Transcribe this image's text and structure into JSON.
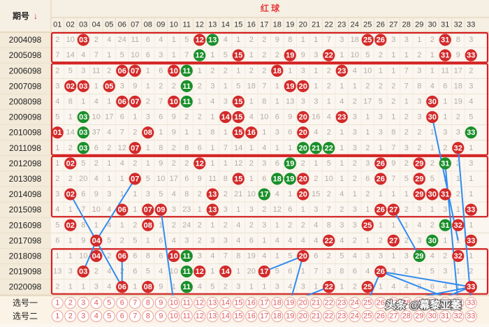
{
  "header": {
    "period_label": "期号",
    "sort_arrow": "↓",
    "red_label": "红 球",
    "columns": [
      "01",
      "02",
      "03",
      "04",
      "05",
      "06",
      "07",
      "08",
      "09",
      "10",
      "11",
      "12",
      "13",
      "14",
      "15",
      "16",
      "17",
      "18",
      "19",
      "20",
      "21",
      "22",
      "23",
      "24",
      "25",
      "26",
      "27",
      "28",
      "29",
      "30",
      "31",
      "32",
      "33"
    ]
  },
  "colors": {
    "red_ball": "#d32a2a",
    "green_ball": "#1a8f2a",
    "trend_line": "#2e8bf0",
    "box_border": "#d42020",
    "header_text": "#e63b3b"
  },
  "rows": [
    {
      "period": "2004098",
      "cells": [
        "2",
        "10",
        "03",
        "2",
        "4",
        "24",
        "11",
        "6",
        "4",
        "1",
        "5",
        "12",
        "13",
        "4",
        "1",
        "2",
        "2",
        "9",
        "8",
        "1",
        "1",
        "7",
        "3",
        "18",
        "25",
        "26",
        "3",
        "3",
        "1",
        "2",
        "31",
        "8",
        "3"
      ]
    },
    {
      "period": "2005098",
      "cells": [
        "7",
        "14",
        "4",
        "7",
        "1",
        "5",
        "10",
        "6",
        "3",
        "1",
        "7",
        "12",
        "1",
        "5",
        "15",
        "1",
        "2",
        "2",
        "19",
        "9",
        "3",
        "22",
        "1",
        "10",
        "5",
        "2",
        "1",
        "1",
        "2",
        "1",
        "31",
        "9",
        "33"
      ]
    },
    {
      "period": "2006098",
      "cells": [
        "2",
        "5",
        "3",
        "11",
        "2",
        "06",
        "07",
        "1",
        "6",
        "10",
        "11",
        "1",
        "2",
        "2",
        "1",
        "2",
        "2",
        "18",
        "1",
        "3",
        "1",
        "2",
        "23",
        "4",
        "10",
        "1",
        "1",
        "7",
        "3",
        "1",
        "11",
        "17",
        "2"
      ]
    },
    {
      "period": "2007098",
      "cells": [
        "3",
        "02",
        "03",
        "1",
        "05",
        "3",
        "9",
        "1",
        "2",
        "2",
        "11",
        "2",
        "3",
        "1",
        "5",
        "18",
        "7",
        "1",
        "19",
        "20",
        "1",
        "2",
        "1",
        "1",
        "2",
        "2",
        "2",
        "7",
        "8",
        "4",
        "6",
        "18",
        "3"
      ]
    },
    {
      "period": "2008098",
      "cells": [
        "4",
        "8",
        "1",
        "4",
        "1",
        "06",
        "07",
        "2",
        "7",
        "10",
        "11",
        "1",
        "4",
        "3",
        "15",
        "1",
        "8",
        "1",
        "13",
        "3",
        "3",
        "1",
        "4",
        "2",
        "17",
        "5",
        "2",
        "1",
        "3",
        "30",
        "1",
        "19",
        "4"
      ]
    },
    {
      "period": "2009098",
      "cells": [
        "5",
        "1",
        "03",
        "10",
        "17",
        "6",
        "1",
        "3",
        "6",
        "9",
        "2",
        "2",
        "1",
        "14",
        "15",
        "4",
        "10",
        "6",
        "9",
        "20",
        "16",
        "4",
        "23",
        "3",
        "1",
        "3",
        "1",
        "2",
        "3",
        "30",
        "1",
        "2",
        "5"
      ]
    },
    {
      "period": "2010098",
      "cells": [
        "01",
        "14",
        "03",
        "37",
        "4",
        "7",
        "2",
        "08",
        "1",
        "9",
        "1",
        "1",
        "8",
        "1",
        "15",
        "16",
        "1",
        "3",
        "6",
        "20",
        "4",
        "2",
        "1",
        "3",
        "1",
        "3",
        "8",
        "2",
        "2",
        "1",
        "3",
        "3",
        "33"
      ]
    },
    {
      "period": "2011098",
      "cells": [
        "1",
        "2",
        "03",
        "6",
        "2",
        "12",
        "07",
        "1",
        "8",
        "2",
        "8",
        "6",
        "1",
        "7",
        "14",
        "1",
        "4",
        "1",
        "1",
        "20",
        "21",
        "22",
        "1",
        "3",
        "2",
        "1",
        "7",
        "3",
        "2",
        "1",
        "2",
        "32",
        "1"
      ]
    },
    {
      "period": "2012098",
      "cells": [
        "1",
        "02",
        "5",
        "2",
        "1",
        "4",
        "2",
        "1",
        "9",
        "2",
        "2",
        "12",
        "1",
        "1",
        "12",
        "2",
        "3",
        "6",
        "19",
        "2",
        "1",
        "5",
        "1",
        "2",
        "3",
        "26",
        "9",
        "2",
        "29",
        "2",
        "31",
        "2",
        "3"
      ]
    },
    {
      "period": "2013098",
      "cells": [
        "2",
        "2",
        "20",
        "4",
        "1",
        "1",
        "07",
        "5",
        "10",
        "17",
        "6",
        "9",
        "11",
        "8",
        "15",
        "1",
        "6",
        "18",
        "19",
        "20",
        "2",
        "10",
        "1",
        "2",
        "6",
        "26",
        "7",
        "5",
        "29",
        "5",
        "1",
        "1",
        "1"
      ]
    },
    {
      "period": "2014098",
      "cells": [
        "3",
        "02",
        "6",
        "9",
        "3",
        "1",
        "1",
        "3",
        "5",
        "4",
        "8",
        "2",
        "13",
        "2",
        "21",
        "10",
        "17",
        "4",
        "1",
        "20",
        "15",
        "2",
        "4",
        "1",
        "2",
        "1",
        "1",
        "1",
        "29",
        "30",
        "31",
        "2",
        "1"
      ]
    },
    {
      "period": "2015098",
      "cells": [
        "4",
        "1",
        "7",
        "10",
        "4",
        "06",
        "1",
        "07",
        "09",
        "3",
        "23",
        "1",
        "13",
        "3",
        "1",
        "3",
        "2",
        "12",
        "6",
        "1",
        "3",
        "7",
        "2",
        "3",
        "1",
        "26",
        "27",
        "2",
        "3",
        "1",
        "3",
        "1",
        "33"
      ]
    },
    {
      "period": "2016098",
      "cells": [
        "5",
        "02",
        "8",
        "1",
        "4",
        "1",
        "2",
        "08",
        "1",
        "2",
        "24",
        "2",
        "1",
        "2",
        "4",
        "2",
        "3",
        "1",
        "2",
        "2",
        "4",
        "8",
        "3",
        "3",
        "25",
        "1",
        "1",
        "1",
        "4",
        "2",
        "31",
        "32",
        "1"
      ]
    },
    {
      "period": "2017098",
      "cells": [
        "6",
        "1",
        "9",
        "04",
        "5",
        "2",
        "5",
        "1",
        "6",
        "4",
        "3",
        "2",
        "3",
        "3",
        "4",
        "6",
        "1",
        "4",
        "4",
        "4",
        "4",
        "22",
        "4",
        "2",
        "1",
        "2",
        "27",
        "2",
        "3",
        "30",
        "1",
        "1",
        "33"
      ]
    },
    {
      "period": "2018098",
      "cells": [
        "1",
        "1",
        "10",
        "04",
        "2",
        "06",
        "6",
        "8",
        "6",
        "10",
        "11",
        "3",
        "4",
        "7",
        "8",
        "19",
        "4",
        "1",
        "5",
        "20",
        "6",
        "2",
        "5",
        "4",
        "3",
        "3",
        "1",
        "3",
        "29",
        "4",
        "2",
        "32",
        "1"
      ]
    },
    {
      "period": "2019098",
      "cells": [
        "13",
        "3",
        "03",
        "2",
        "4",
        "2",
        "6",
        "5",
        "4",
        "10",
        "11",
        "12",
        "1",
        "14",
        "1",
        "20",
        "17",
        "5",
        "6",
        "1",
        "7",
        "3",
        "8",
        "6",
        "4",
        "26",
        "3",
        "2",
        "1",
        "5",
        "3",
        "1",
        "2"
      ]
    },
    {
      "period": "2020098",
      "cells": [
        "2",
        "1",
        "1",
        "3",
        "4",
        "06",
        "1",
        "08",
        "9",
        "1",
        "11",
        "4",
        "5",
        "2",
        "3",
        "1",
        "1",
        "3",
        "4",
        "3",
        "1",
        "22",
        "1",
        "2",
        "25",
        "1",
        "4",
        "4",
        "2",
        "6",
        "4",
        "1",
        "33"
      ]
    }
  ],
  "balls": [
    {
      "row": 0,
      "col": 2,
      "green": false
    },
    {
      "row": 0,
      "col": 11,
      "green": false
    },
    {
      "row": 0,
      "col": 12,
      "green": true
    },
    {
      "row": 0,
      "col": 24,
      "green": false
    },
    {
      "row": 0,
      "col": 25,
      "green": false
    },
    {
      "row": 0,
      "col": 30,
      "green": false
    },
    {
      "row": 1,
      "col": 11,
      "green": true
    },
    {
      "row": 1,
      "col": 14,
      "green": false
    },
    {
      "row": 1,
      "col": 18,
      "green": false
    },
    {
      "row": 1,
      "col": 21,
      "green": false
    },
    {
      "row": 1,
      "col": 30,
      "green": false
    },
    {
      "row": 1,
      "col": 32,
      "green": false
    },
    {
      "row": 2,
      "col": 5,
      "green": false
    },
    {
      "row": 2,
      "col": 6,
      "green": false
    },
    {
      "row": 2,
      "col": 9,
      "green": false
    },
    {
      "row": 2,
      "col": 10,
      "green": true
    },
    {
      "row": 2,
      "col": 17,
      "green": false
    },
    {
      "row": 2,
      "col": 22,
      "green": false
    },
    {
      "row": 3,
      "col": 1,
      "green": false
    },
    {
      "row": 3,
      "col": 2,
      "green": false
    },
    {
      "row": 3,
      "col": 4,
      "green": false
    },
    {
      "row": 3,
      "col": 10,
      "green": true
    },
    {
      "row": 3,
      "col": 18,
      "green": false
    },
    {
      "row": 3,
      "col": 19,
      "green": false
    },
    {
      "row": 4,
      "col": 5,
      "green": false
    },
    {
      "row": 4,
      "col": 6,
      "green": false
    },
    {
      "row": 4,
      "col": 9,
      "green": false
    },
    {
      "row": 4,
      "col": 10,
      "green": true
    },
    {
      "row": 4,
      "col": 14,
      "green": false
    },
    {
      "row": 4,
      "col": 29,
      "green": false
    },
    {
      "row": 5,
      "col": 2,
      "green": true
    },
    {
      "row": 5,
      "col": 13,
      "green": false
    },
    {
      "row": 5,
      "col": 14,
      "green": false
    },
    {
      "row": 5,
      "col": 19,
      "green": false
    },
    {
      "row": 5,
      "col": 22,
      "green": false
    },
    {
      "row": 5,
      "col": 29,
      "green": false
    },
    {
      "row": 6,
      "col": 0,
      "green": false
    },
    {
      "row": 6,
      "col": 2,
      "green": true
    },
    {
      "row": 6,
      "col": 7,
      "green": false
    },
    {
      "row": 6,
      "col": 14,
      "green": false
    },
    {
      "row": 6,
      "col": 15,
      "green": false
    },
    {
      "row": 6,
      "col": 19,
      "green": false
    },
    {
      "row": 6,
      "col": 32,
      "green": true
    },
    {
      "row": 7,
      "col": 2,
      "green": true
    },
    {
      "row": 7,
      "col": 6,
      "green": false
    },
    {
      "row": 7,
      "col": 19,
      "green": true
    },
    {
      "row": 7,
      "col": 20,
      "green": true
    },
    {
      "row": 7,
      "col": 21,
      "green": true
    },
    {
      "row": 7,
      "col": 31,
      "green": false
    },
    {
      "row": 8,
      "col": 1,
      "green": false
    },
    {
      "row": 8,
      "col": 11,
      "green": false
    },
    {
      "row": 8,
      "col": 18,
      "green": true
    },
    {
      "row": 8,
      "col": 25,
      "green": false
    },
    {
      "row": 8,
      "col": 28,
      "green": false
    },
    {
      "row": 8,
      "col": 30,
      "green": true
    },
    {
      "row": 9,
      "col": 6,
      "green": false
    },
    {
      "row": 9,
      "col": 14,
      "green": false
    },
    {
      "row": 9,
      "col": 17,
      "green": true
    },
    {
      "row": 9,
      "col": 18,
      "green": true
    },
    {
      "row": 9,
      "col": 19,
      "green": false
    },
    {
      "row": 9,
      "col": 25,
      "green": false
    },
    {
      "row": 9,
      "col": 28,
      "green": false
    },
    {
      "row": 10,
      "col": 1,
      "green": false
    },
    {
      "row": 10,
      "col": 12,
      "green": false
    },
    {
      "row": 10,
      "col": 16,
      "green": true
    },
    {
      "row": 10,
      "col": 19,
      "green": false
    },
    {
      "row": 10,
      "col": 28,
      "green": false
    },
    {
      "row": 10,
      "col": 29,
      "green": false
    },
    {
      "row": 10,
      "col": 30,
      "green": false
    },
    {
      "row": 11,
      "col": 5,
      "green": false
    },
    {
      "row": 11,
      "col": 7,
      "green": false
    },
    {
      "row": 11,
      "col": 8,
      "green": false
    },
    {
      "row": 11,
      "col": 12,
      "green": false
    },
    {
      "row": 11,
      "col": 25,
      "green": false
    },
    {
      "row": 11,
      "col": 26,
      "green": false
    },
    {
      "row": 11,
      "col": 32,
      "green": false
    },
    {
      "row": 12,
      "col": 1,
      "green": false
    },
    {
      "row": 12,
      "col": 7,
      "green": false
    },
    {
      "row": 12,
      "col": 24,
      "green": false
    },
    {
      "row": 12,
      "col": 30,
      "green": true
    },
    {
      "row": 12,
      "col": 31,
      "green": false
    },
    {
      "row": 13,
      "col": 3,
      "green": false
    },
    {
      "row": 13,
      "col": 21,
      "green": false
    },
    {
      "row": 13,
      "col": 26,
      "green": false
    },
    {
      "row": 13,
      "col": 29,
      "green": true
    },
    {
      "row": 13,
      "col": 32,
      "green": false
    },
    {
      "row": 14,
      "col": 3,
      "green": false
    },
    {
      "row": 14,
      "col": 5,
      "green": false
    },
    {
      "row": 14,
      "col": 9,
      "green": false
    },
    {
      "row": 14,
      "col": 10,
      "green": true
    },
    {
      "row": 14,
      "col": 19,
      "green": false
    },
    {
      "row": 14,
      "col": 28,
      "green": true
    },
    {
      "row": 14,
      "col": 31,
      "green": false
    },
    {
      "row": 15,
      "col": 2,
      "green": false
    },
    {
      "row": 15,
      "col": 10,
      "green": true
    },
    {
      "row": 15,
      "col": 11,
      "green": false
    },
    {
      "row": 15,
      "col": 13,
      "green": false
    },
    {
      "row": 15,
      "col": 16,
      "green": false
    },
    {
      "row": 15,
      "col": 25,
      "green": false
    },
    {
      "row": 16,
      "col": 5,
      "green": false
    },
    {
      "row": 16,
      "col": 7,
      "green": false
    },
    {
      "row": 16,
      "col": 10,
      "green": true
    },
    {
      "row": 16,
      "col": 21,
      "green": false
    },
    {
      "row": 16,
      "col": 24,
      "green": false
    },
    {
      "row": 16,
      "col": 32,
      "green": false
    }
  ],
  "boxes": [
    [
      0,
      1
    ],
    [
      2,
      7
    ],
    [
      8,
      11
    ],
    [
      14,
      16
    ]
  ],
  "lines": [
    [
      [
        10,
        1
      ],
      [
        13,
        3
      ],
      [
        16,
        5
      ]
    ],
    [
      [
        9,
        6
      ],
      [
        13,
        3
      ],
      [
        15,
        2
      ]
    ],
    [
      [
        14,
        5
      ],
      [
        16,
        5
      ]
    ],
    [
      [
        11,
        8
      ],
      [
        17,
        9
      ]
    ],
    [
      [
        15,
        16
      ],
      [
        14,
        19
      ],
      [
        17,
        18
      ],
      [
        16,
        21
      ]
    ],
    [
      [
        15,
        25
      ],
      [
        18,
        24
      ]
    ],
    [
      [
        15,
        25
      ],
      [
        18,
        31
      ]
    ],
    [
      [
        15,
        25
      ],
      [
        16,
        32
      ]
    ],
    [
      [
        11,
        26
      ],
      [
        14,
        28
      ]
    ],
    [
      [
        8,
        30
      ],
      [
        17,
        31
      ]
    ],
    [
      [
        7,
        31
      ],
      [
        18,
        32
      ]
    ],
    [
      [
        5,
        29
      ],
      [
        13,
        31
      ]
    ],
    [
      [
        16,
        32
      ],
      [
        17,
        26
      ]
    ],
    [
      [
        16,
        32
      ],
      [
        18,
        29
      ]
    ]
  ],
  "pick_rows": [
    {
      "label": "选号一",
      "numbers": [
        "1",
        "2",
        "3",
        "4",
        "5",
        "6",
        "7",
        "8",
        "9",
        "10",
        "11",
        "12",
        "13",
        "14",
        "15",
        "16",
        "17",
        "18",
        "19",
        "20",
        "21",
        "22",
        "23",
        "24",
        "25",
        "26",
        "27",
        "28",
        "29",
        "30",
        "31",
        "32",
        "33"
      ]
    },
    {
      "label": "选号二",
      "numbers": [
        "1",
        "2",
        "3",
        "4",
        "5",
        "6",
        "7",
        "8",
        "9",
        "10",
        "11",
        "12",
        "13",
        "14",
        "15",
        "16",
        "17",
        "18",
        "19",
        "20",
        "21",
        "22",
        "23",
        "24",
        "25",
        "26",
        "27",
        "28",
        "29",
        "30",
        "31",
        "32",
        "33"
      ]
    }
  ],
  "watermark": "头条 @幕黎亚萎"
}
